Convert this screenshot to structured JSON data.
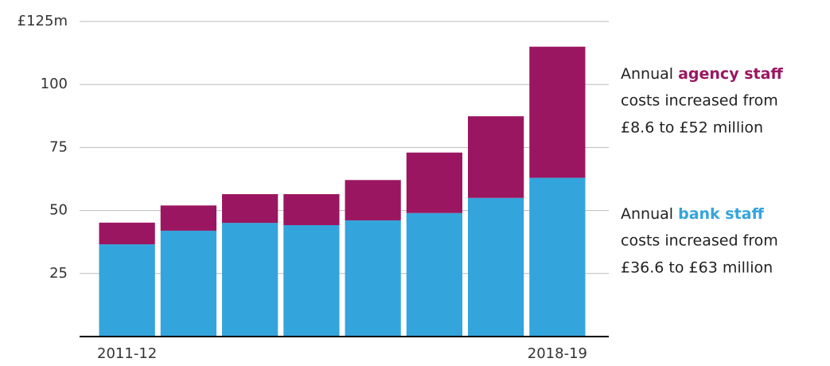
{
  "chart_data": {
    "type": "stacked_bar",
    "categories": [
      "2011-12",
      null,
      null,
      null,
      null,
      null,
      null,
      "2018-19"
    ],
    "series": [
      {
        "color": "#34a4dc",
        "values": [
          36.6,
          42,
          45.1,
          44.2,
          46.1,
          49,
          55,
          63
        ]
      },
      {
        "color": "#9b1660",
        "values": [
          8.6,
          10,
          11.4,
          12.3,
          16,
          24,
          32.4,
          52
        ]
      }
    ],
    "ylim": [
      0,
      125
    ],
    "yticks": [
      {
        "value": 125,
        "label": "£125m"
      },
      100,
      75,
      50,
      25
    ],
    "grid": true,
    "annotations": [
      {
        "prefix": "Annual ",
        "highlight": "agency staff",
        "lines": [
          "costs increased from",
          "£8.6 to £52 million"
        ]
      },
      {
        "prefix": "Annual ",
        "highlight": "bank staff",
        "lines": [
          "costs increased from",
          "£36.6 to £63 million"
        ]
      }
    ]
  }
}
